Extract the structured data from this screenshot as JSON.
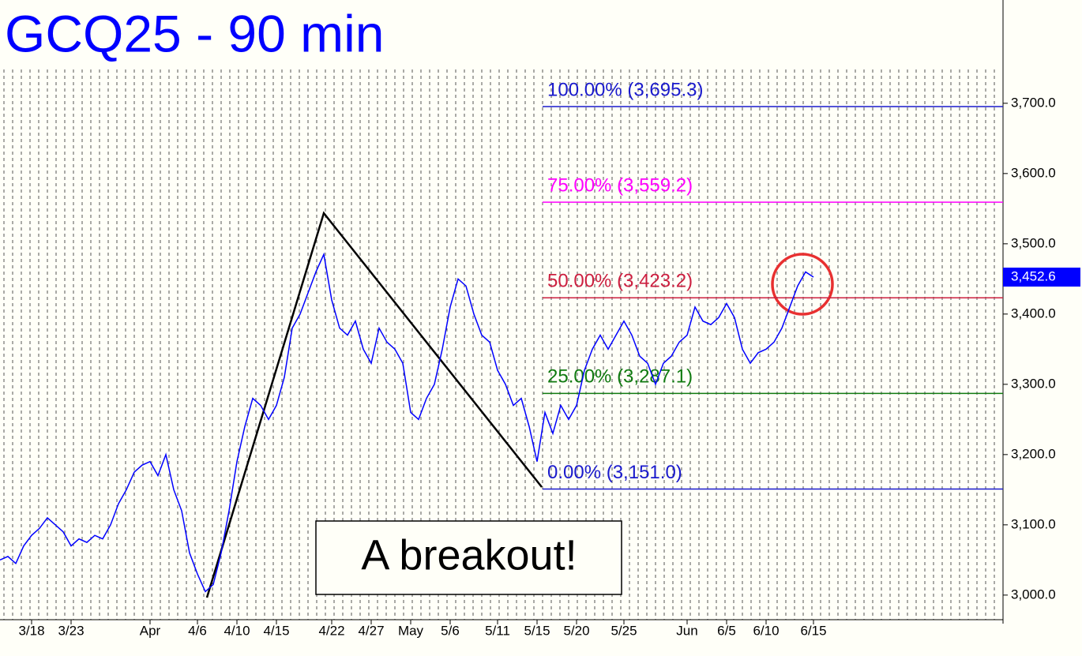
{
  "chart_data": {
    "type": "line",
    "title": "GCQ25 - 90 min",
    "color": "#0000ff",
    "categories": [
      null,
      null,
      null,
      null,
      "3/18",
      null,
      null,
      null,
      null,
      "3/23",
      null,
      null,
      null,
      null,
      null,
      null,
      null,
      null,
      null,
      "Apr",
      null,
      null,
      null,
      null,
      null,
      "4/6",
      null,
      null,
      null,
      null,
      "4/10",
      null,
      null,
      null,
      null,
      "4/15",
      null,
      null,
      null,
      null,
      null,
      null,
      "4/22",
      null,
      null,
      null,
      null,
      "4/27",
      null,
      null,
      null,
      null,
      "May",
      null,
      null,
      null,
      null,
      "5/6",
      null,
      null,
      null,
      null,
      null,
      "5/11",
      null,
      null,
      null,
      null,
      "5/15",
      null,
      null,
      null,
      null,
      "5/20",
      null,
      null,
      null,
      null,
      null,
      "5/25",
      null,
      null,
      null,
      null,
      null,
      null,
      null,
      "Jun",
      null,
      null,
      null,
      null,
      "6/5",
      null,
      null,
      null,
      null,
      "6/10",
      null,
      null,
      null,
      null,
      null,
      "6/15"
    ],
    "values": [
      3050,
      3055,
      3045,
      3070,
      3085,
      3095,
      3110,
      3100,
      3090,
      3070,
      3080,
      3075,
      3085,
      3080,
      3100,
      3130,
      3150,
      3175,
      3185,
      3190,
      3170,
      3200,
      3150,
      3120,
      3060,
      3030,
      3005,
      3015,
      3060,
      3120,
      3190,
      3240,
      3280,
      3270,
      3250,
      3270,
      3310,
      3380,
      3400,
      3430,
      3460,
      3485,
      3420,
      3380,
      3370,
      3390,
      3350,
      3330,
      3380,
      3360,
      3350,
      3330,
      3260,
      3250,
      3280,
      3300,
      3350,
      3410,
      3450,
      3440,
      3400,
      3370,
      3360,
      3320,
      3300,
      3270,
      3280,
      3240,
      3190,
      3260,
      3230,
      3270,
      3250,
      3270,
      3320,
      3350,
      3370,
      3350,
      3370,
      3390,
      3370,
      3340,
      3330,
      3300,
      3330,
      3340,
      3360,
      3370,
      3410,
      3390,
      3385,
      3395,
      3415,
      3395,
      3350,
      3330,
      3345,
      3350,
      3360,
      3380,
      3410,
      3440,
      3460,
      3452.6
    ],
    "ylim": [
      2965,
      3847
    ],
    "yticks": [
      {
        "value": 3000,
        "label": "3,000.0"
      },
      {
        "value": 3100,
        "label": "3,100.0"
      },
      {
        "value": 3200,
        "label": "3,200.0"
      },
      {
        "value": 3300,
        "label": "3,300.0"
      },
      {
        "value": 3400,
        "label": "3,400.0"
      },
      {
        "value": 3500,
        "label": "3,500.0"
      },
      {
        "value": 3600,
        "label": "3,600.0"
      },
      {
        "value": 3700,
        "label": "3,700.0"
      }
    ],
    "levels": [
      {
        "label": "100.00% (3,695.3)",
        "value": 3695.3,
        "color": "#1a1acc"
      },
      {
        "label": "75.00% (3,559.2)",
        "value": 3559.2,
        "color": "#ff00ff"
      },
      {
        "label": "50.00% (3,423.2)",
        "value": 3423.2,
        "color": "#cc2040"
      },
      {
        "label": "25.00% (3,287.1)",
        "value": 3287.1,
        "color": "#107a10"
      },
      {
        "label": "0.00% (3,151.0)",
        "value": 3151.0,
        "color": "#1a1acc"
      }
    ],
    "last_price": {
      "value": 3452.6,
      "label": "3,452.6"
    },
    "annotation": "A breakout!"
  }
}
